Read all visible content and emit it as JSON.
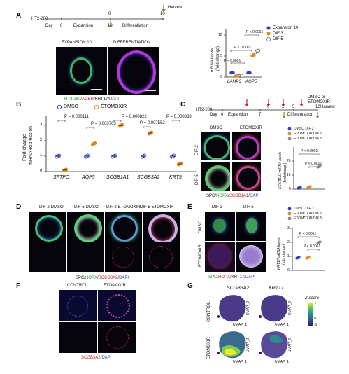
{
  "panels": {
    "A": "A",
    "B": "B",
    "C": "C",
    "D": "D",
    "E": "E",
    "F": "F",
    "G": "G"
  },
  "panelA": {
    "cell_line": "HT2-280",
    "day_label": "Day",
    "timeline_ticks": [
      "0",
      "10",
      "0",
      "10"
    ],
    "phases": [
      "Expansion",
      "Differentiation"
    ],
    "harvest": "Harvest",
    "image_titles": [
      "EXPANSION 10",
      "DIFFERENTIATION"
    ],
    "stain_caption": {
      "a": "HT2-280",
      "b": "AGER",
      "c": "KRT17",
      "d": "DAPI"
    },
    "chart": {
      "ylabel_line1": "mRNA levels",
      "ylabel_line2": "(fold change)",
      "yticks": [
        "0",
        "5",
        "10"
      ],
      "categories": [
        "LAMP3",
        "AQP5"
      ],
      "pvalues": [
        "P < 0.0001",
        "P < 0.0001",
        "P < 0.0001"
      ],
      "legend": [
        "Expansion 10",
        "DIF 3",
        "DIF 5"
      ]
    }
  },
  "panelB": {
    "legend": [
      "DMSO",
      "ETOMOXIR"
    ],
    "ylabel_line1": "Fold change",
    "ylabel_line2": "mRNA expression",
    "yticks": [
      "0",
      "1",
      "2",
      "3"
    ],
    "genes": [
      "SFTPC",
      "AQP5",
      "SCGB1A1",
      "SCGB3A2",
      "KRT5"
    ],
    "pvalues": [
      "P = 0.000111",
      "P = 0.003703",
      "P = 0.000822",
      "P = 0.007552",
      "P = 0.008933"
    ]
  },
  "panelC": {
    "cell_line": "HT2-280",
    "day_label": "Day",
    "timeline_ticks": [
      "0",
      "7",
      "0",
      "2",
      "5",
      "10"
    ],
    "phases": [
      "Expansion",
      "Differentiation"
    ],
    "treatment": "DMSO or ETOMOXIR",
    "harvest": "Harvest",
    "col_titles": [
      "DMSO",
      "ETOMOXIR"
    ],
    "row_titles": [
      "DIF 2",
      "DIF 5"
    ],
    "stain_caption": {
      "a": "SPC",
      "b": "HOPX",
      "c": "SCGB1A1",
      "d": "DAPI"
    },
    "chart": {
      "ylabel_line1": "SCGB1A1 mRNA levels",
      "ylabel_line2": "(fold change)",
      "yticks": [
        "0",
        "10",
        "20"
      ],
      "legend": [
        "DMSO DIF 2",
        "ETOMOXIR DIF 2",
        "ETOMOXIR DIF 5"
      ],
      "pvalues": [
        "P < 0.0001",
        "P < 0.0001"
      ]
    }
  },
  "panelD": {
    "col_titles": [
      "DIF 2-DMSO",
      "DIF 5-DMSO",
      "DIF 2-ETOMOXIR",
      "DIF 5-ETOMOXIR"
    ],
    "stain_caption": {
      "a": "SPC",
      "b": "HOPX",
      "c": "SCGB3A2",
      "d": "DAPI"
    }
  },
  "panelE": {
    "col_titles": [
      "DIF 2",
      "DIF 5"
    ],
    "row_titles": [
      "DMSO",
      "ETOMOXIR"
    ],
    "stain_caption": {
      "a": "SPC",
      "b": "HOPX",
      "c": "KRT17",
      "d": "DAPI"
    },
    "chart": {
      "ylabel_line1": "KRT17 mRNA levels",
      "ylabel_line2": "(fold change)",
      "yticks": [
        "0",
        "1",
        "2",
        "3"
      ],
      "legend": [
        "DMSO DIF 2",
        "ETOMOXIR DIF 2",
        "ETOMOXIR DIF 5"
      ],
      "pvalues": [
        "P < 0.0001",
        "P < 0.0001"
      ]
    }
  },
  "panelF": {
    "col_titles": [
      "CONTROL",
      "ETOMOXIR"
    ],
    "stain_caption": {
      "a": "SCGB3A2",
      "b": "DAPI"
    }
  },
  "panelG": {
    "gene_titles": [
      "SCGB3A2",
      "KRT17"
    ],
    "row_titles": [
      "CONTROL",
      "ETOMOXIR"
    ],
    "axis_x": "UMAP_1",
    "axis_y": "UMAP_2",
    "zscore_title": "Z score",
    "zscore_ticks": [
      "2",
      "1",
      "0",
      "-1"
    ]
  },
  "colors": {
    "blue": "#2b3fc4",
    "orange": "#e08a1e",
    "grey": "#8a8a8a",
    "dark": "#04040a"
  },
  "chart_data": [
    {
      "type": "scatter",
      "title": "",
      "ylabel": "mRNA levels (fold change)",
      "categories": [
        "LAMP3",
        "AQP5"
      ],
      "series": [
        {
          "name": "Expansion 10",
          "values": [
            [
              1,
              1,
              1
            ],
            [
              1,
              1,
              1
            ]
          ]
        },
        {
          "name": "DIF 3",
          "values": [
            [
              0.2,
              0.3,
              0.25
            ],
            [
              5,
              5.5,
              5.2
            ]
          ]
        },
        {
          "name": "DIF 5",
          "values": [
            [
              0.3,
              0.35,
              0.3
            ],
            [
              6,
              6.2,
              6.3
            ]
          ]
        }
      ],
      "ylim": [
        0,
        12
      ]
    },
    {
      "type": "scatter",
      "title": "",
      "ylabel": "Fold change mRNA expression",
      "categories": [
        "SFTPC",
        "AQP5",
        "SCGB1A1",
        "SCGB3A2",
        "KRT5"
      ],
      "series": [
        {
          "name": "DMSO",
          "values": [
            1,
            1,
            1,
            1,
            1
          ]
        },
        {
          "name": "ETOMOXIR",
          "values": [
            0.1,
            1.8,
            3.0,
            2.5,
            0.5
          ]
        }
      ],
      "ylim": [
        0,
        3.5
      ]
    },
    {
      "type": "scatter",
      "title": "",
      "ylabel": "SCGB1A1 mRNA levels (fold change)",
      "categories": [
        "DMSO DIF 2",
        "ETOMOXIR DIF 2",
        "ETOMOXIR DIF 5"
      ],
      "series": [
        {
          "name": "SCGB1A1",
          "values": [
            1,
            1.5,
            16
          ]
        }
      ],
      "ylim": [
        0,
        25
      ]
    },
    {
      "type": "scatter",
      "title": "",
      "ylabel": "KRT17 mRNA levels (fold change)",
      "categories": [
        "DMSO DIF 2",
        "ETOMOXIR DIF 2",
        "ETOMOXIR DIF 5"
      ],
      "series": [
        {
          "name": "KRT17",
          "values": [
            0.9,
            0.9,
            2.0
          ]
        }
      ],
      "ylim": [
        0,
        3
      ]
    }
  ]
}
